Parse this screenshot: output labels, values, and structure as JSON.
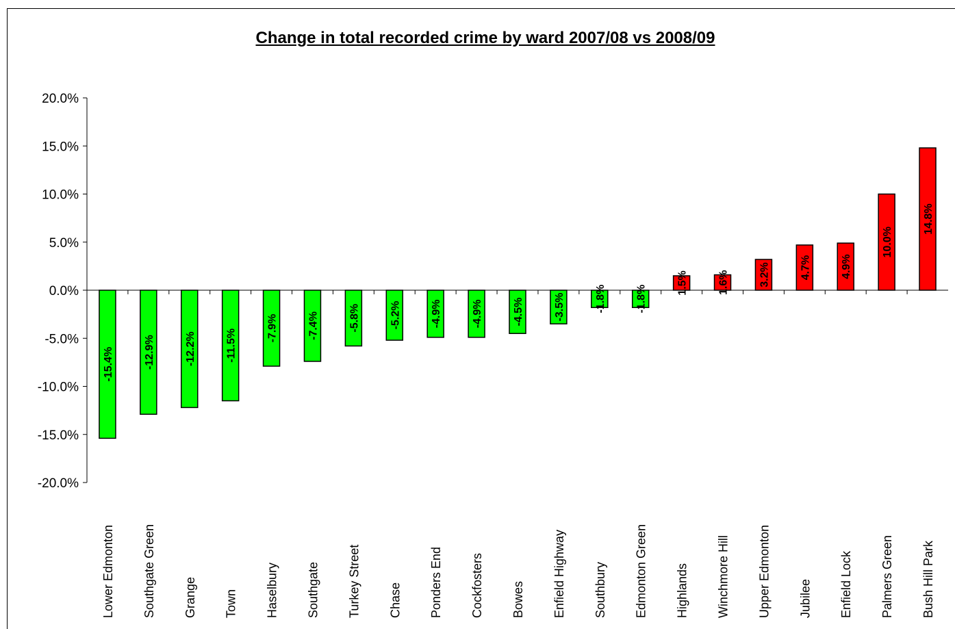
{
  "chart_data": {
    "type": "bar",
    "title": "Change in total recorded crime by ward 2007/08 vs 2008/09",
    "ylim": [
      -20,
      20
    ],
    "y_ticks": [
      "20.0%",
      "15.0%",
      "10.0%",
      "5.0%",
      "0.0%",
      "-5.0%",
      "-10.0%",
      "-15.0%",
      "-20.0%"
    ],
    "categories": [
      "Lower Edmonton",
      "Southgate Green",
      "Grange",
      "Town",
      "Haselbury",
      "Southgate",
      "Turkey Street",
      "Chase",
      "Ponders End",
      "Cockfosters",
      "Bowes",
      "Enfield Highway",
      "Southbury",
      "Edmonton Green",
      "Highlands",
      "Winchmore Hill",
      "Upper Edmonton",
      "Jubilee",
      "Enfield Lock",
      "Palmers Green",
      "Bush Hill Park"
    ],
    "values": [
      -15.4,
      -12.9,
      -12.2,
      -11.5,
      -7.9,
      -7.4,
      -5.8,
      -5.2,
      -4.9,
      -4.9,
      -4.5,
      -3.5,
      -1.8,
      -1.8,
      1.5,
      1.6,
      3.2,
      4.7,
      4.9,
      10.0,
      14.8
    ],
    "data_labels": [
      "-15.4%",
      "-12.9%",
      "-12.2%",
      "-11.5%",
      "-7.9%",
      "-7.4%",
      "-5.8%",
      "-5.2%",
      "-4.9%",
      "-4.9%",
      "-4.5%",
      "-3.5%",
      "-1.8%",
      "-1.8%",
      "1.5%",
      "1.6%",
      "3.2%",
      "4.7%",
      "4.9%",
      "10.0%",
      "14.8%"
    ],
    "colors": {
      "decrease": "#00ff00",
      "increase": "#ff0000"
    },
    "grid": false,
    "legend": "none"
  }
}
